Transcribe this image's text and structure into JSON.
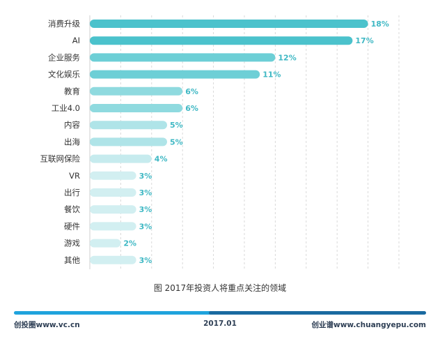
{
  "chart_data": {
    "type": "bar",
    "orientation": "horizontal",
    "title": "图 2017年投资人将重点关注的领域",
    "categories": [
      "消费升级",
      "AI",
      "企业服务",
      "文化娱乐",
      "教育",
      "工业4.0",
      "内容",
      "出海",
      "互联网保险",
      "VR",
      "出行",
      "餐饮",
      "硬件",
      "游戏",
      "其他"
    ],
    "values": [
      18,
      17,
      12,
      11,
      6,
      6,
      5,
      5,
      4,
      3,
      3,
      3,
      3,
      2,
      3
    ],
    "value_labels": [
      "18%",
      "17%",
      "12%",
      "11%",
      "6%",
      "6%",
      "5%",
      "5%",
      "4%",
      "3%",
      "3%",
      "3%",
      "3%",
      "2%",
      "3%"
    ],
    "bar_colors": [
      "#4bc2cc",
      "#4bc2cc",
      "#6dcfd6",
      "#6dcfd6",
      "#8fdadf",
      "#8fdadf",
      "#afe4e8",
      "#afe4e8",
      "#c6ebee",
      "#d2eff1",
      "#d2eff1",
      "#d2eff1",
      "#d2eff1",
      "#d2eff1",
      "#d2eff1"
    ],
    "value_label_color": "#3fb8c4",
    "xlim": [
      0,
      20
    ],
    "grid": "vertical dashed",
    "xlabel": "",
    "ylabel": ""
  },
  "footer": {
    "left": "创投圈www.vc.cn",
    "center": "2017.01",
    "right": "创业谱www.chuangyepu.com",
    "bar_color_light": "#1fa3dd",
    "bar_color_dark": "#1a6aa0"
  }
}
